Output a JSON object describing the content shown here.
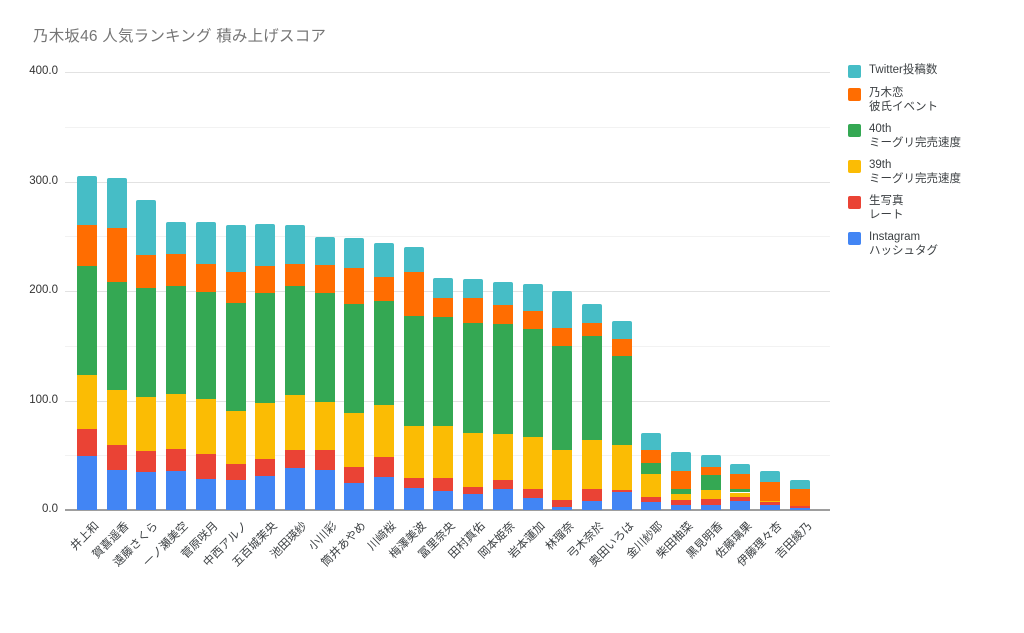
{
  "title": "乃木坂46 人気ランキング 積み上げスコア",
  "chart_data": {
    "type": "bar",
    "stacked": true,
    "title": "乃木坂46 人気ランキング 積み上げスコア",
    "ylim": [
      0,
      400
    ],
    "ytick_labels": [
      "0.0",
      "100.0",
      "200.0",
      "300.0",
      "400.0"
    ],
    "ytick_values": [
      0,
      100,
      200,
      300,
      400
    ],
    "minor_gridlines": [
      50,
      150,
      250,
      350
    ],
    "grid": "on",
    "legend_position": "right",
    "categories": [
      "井上和",
      "賀喜遥香",
      "遠藤さくら",
      "一ノ瀬美空",
      "菅原咲月",
      "中西アルノ",
      "五百城茉央",
      "池田瑛紗",
      "小川彩",
      "筒井あやめ",
      "川﨑桜",
      "梅澤美波",
      "冨里奈央",
      "田村真佑",
      "岡本姫奈",
      "岩本蓮加",
      "林瑠奈",
      "弓木奈於",
      "奥田いろは",
      "金川紗耶",
      "柴田柚菜",
      "黒見明香",
      "佐藤璃果",
      "伊藤理々杏",
      "吉田綾乃"
    ],
    "series": [
      {
        "name": "Instagram ハッシュタグ",
        "legend_lines": [
          "Instagram",
          "ハッシュタグ"
        ],
        "color": "#4285F4",
        "values": [
          49,
          37,
          35,
          36,
          28,
          27,
          31,
          38,
          37,
          25,
          30,
          20,
          17,
          15,
          19,
          11,
          3,
          8,
          16,
          7,
          5,
          5,
          8,
          5,
          2
        ]
      },
      {
        "name": "生写真 レート",
        "legend_lines": [
          "生写真",
          "レート"
        ],
        "color": "#EA4335",
        "values": [
          25,
          22,
          19,
          20,
          23,
          15,
          16,
          17,
          18,
          14,
          18,
          9,
          12,
          6,
          8,
          8,
          6,
          11,
          2,
          5,
          4,
          5,
          4,
          2,
          2
        ]
      },
      {
        "name": "39th ミーグリ完売速度",
        "legend_lines": [
          "39th",
          "ミーグリ完売速度"
        ],
        "color": "#FBBC04",
        "values": [
          49,
          51,
          49,
          50,
          50,
          48,
          51,
          50,
          44,
          50,
          48,
          48,
          48,
          49,
          42,
          48,
          46,
          45,
          41,
          21,
          6,
          8,
          4,
          1,
          0
        ]
      },
      {
        "name": "40th ミーグリ完売速度",
        "legend_lines": [
          "40th",
          "ミーグリ完売速度"
        ],
        "color": "#34A853",
        "values": [
          100,
          98,
          100,
          99,
          98,
          99,
          100,
          100,
          99,
          99,
          95,
          100,
          99,
          101,
          101,
          98,
          95,
          95,
          82,
          10,
          4,
          14,
          3,
          0,
          0
        ]
      },
      {
        "name": "乃木恋 彼氏イベント",
        "legend_lines": [
          "乃木恋",
          "彼氏イベント"
        ],
        "color": "#FF6D01",
        "values": [
          37,
          50,
          30,
          29,
          26,
          28,
          25,
          20,
          26,
          33,
          22,
          40,
          18,
          23,
          17,
          17,
          16,
          12,
          15,
          12,
          17,
          7,
          14,
          18,
          15
        ]
      },
      {
        "name": "Twitter投稿数",
        "legend_lines": [
          "Twitter投稿数"
        ],
        "color": "#46BDC6",
        "values": [
          45,
          45,
          50,
          29,
          38,
          43,
          38,
          35,
          25,
          27,
          31,
          23,
          18,
          17,
          21,
          24,
          34,
          17,
          17,
          15,
          17,
          11,
          9,
          10,
          8
        ]
      }
    ],
    "totals": [
      305,
      303,
      283,
      263,
      263,
      260,
      261,
      260,
      249,
      248,
      244,
      240,
      212,
      211,
      208,
      206,
      200,
      188,
      173,
      70,
      53,
      50,
      42,
      36,
      27
    ]
  }
}
